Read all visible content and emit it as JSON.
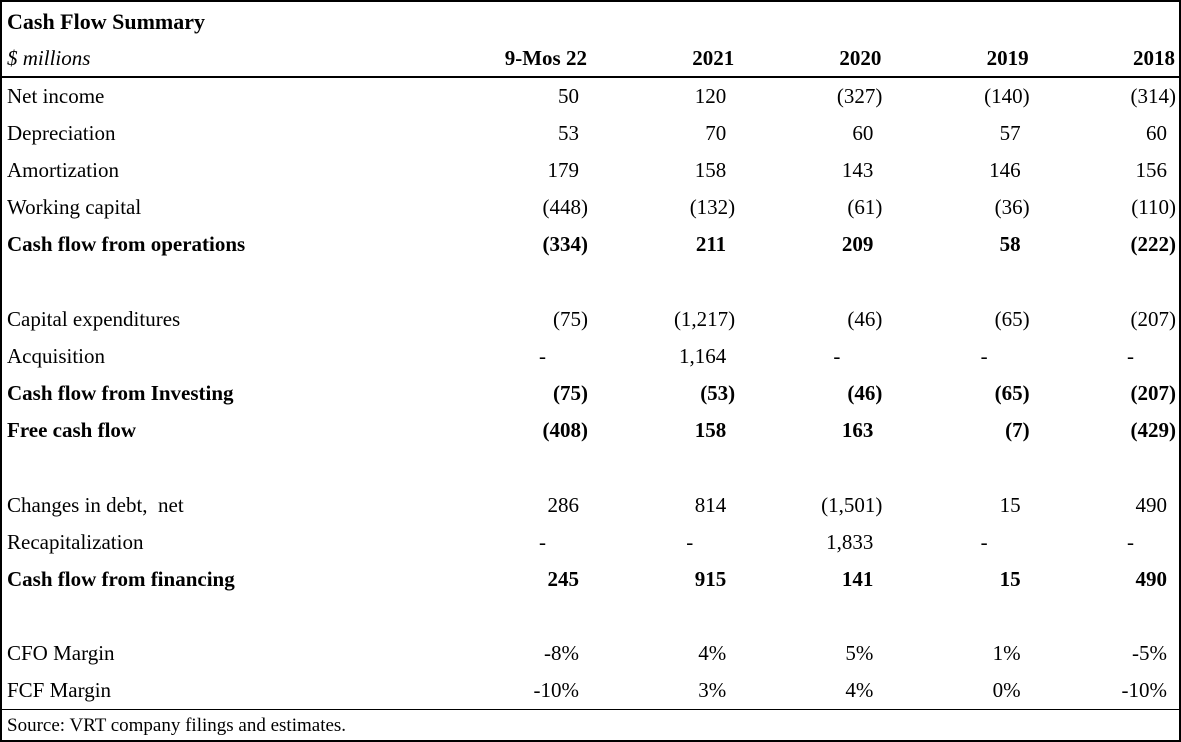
{
  "table": {
    "title": "Cash Flow Summary",
    "unit_label": "$ millions",
    "columns": [
      "9-Mos 22",
      "2021",
      "2020",
      "2019",
      "2018"
    ],
    "rows": [
      {
        "type": "data",
        "label": "Net income",
        "bold": false,
        "values": [
          "50",
          "120",
          "(327)",
          "(140)",
          "(314)"
        ]
      },
      {
        "type": "data",
        "label": "Depreciation",
        "bold": false,
        "values": [
          "53",
          "70",
          "60",
          "57",
          "60"
        ]
      },
      {
        "type": "data",
        "label": "Amortization",
        "bold": false,
        "values": [
          "179",
          "158",
          "143",
          "146",
          "156"
        ]
      },
      {
        "type": "data",
        "label": "Working capital",
        "bold": false,
        "values": [
          "(448)",
          "(132)",
          "(61)",
          "(36)",
          "(110)"
        ]
      },
      {
        "type": "data",
        "label": "Cash flow from operations",
        "bold": true,
        "values": [
          "(334)",
          "211",
          "209",
          "58",
          "(222)"
        ]
      },
      {
        "type": "spacer"
      },
      {
        "type": "data",
        "label": "Capital expenditures",
        "bold": false,
        "values": [
          "(75)",
          "(1,217)",
          "(46)",
          "(65)",
          "(207)"
        ]
      },
      {
        "type": "data",
        "label": "Acquisition",
        "bold": false,
        "values": [
          "-",
          "1,164",
          "-",
          "-",
          "-"
        ]
      },
      {
        "type": "data",
        "label": "Cash flow from Investing",
        "bold": true,
        "values": [
          "(75)",
          "(53)",
          "(46)",
          "(65)",
          "(207)"
        ]
      },
      {
        "type": "data",
        "label": "Free cash flow",
        "bold": true,
        "values": [
          "(408)",
          "158",
          "163",
          "(7)",
          "(429)"
        ]
      },
      {
        "type": "spacer"
      },
      {
        "type": "data",
        "label": "Changes in debt,  net",
        "bold": false,
        "values": [
          "286",
          "814",
          "(1,501)",
          "15",
          "490"
        ]
      },
      {
        "type": "data",
        "label": "Recapitalization",
        "bold": false,
        "values": [
          "-",
          "-",
          "1,833",
          "-",
          "-"
        ]
      },
      {
        "type": "data",
        "label": "Cash flow from financing",
        "bold": true,
        "values": [
          "245",
          "915",
          "141",
          "15",
          "490"
        ]
      },
      {
        "type": "spacer"
      },
      {
        "type": "data",
        "label": "CFO Margin",
        "bold": false,
        "values": [
          "-8%",
          "4%",
          "5%",
          "1%",
          "-5%"
        ]
      },
      {
        "type": "data",
        "label": "FCF Margin",
        "bold": false,
        "values": [
          "-10%",
          "3%",
          "4%",
          "0%",
          "-10%"
        ]
      }
    ],
    "source": "Source: VRT company filings and estimates.",
    "colors": {
      "text": "#000000",
      "background": "#ffffff",
      "border": "#000000"
    }
  }
}
